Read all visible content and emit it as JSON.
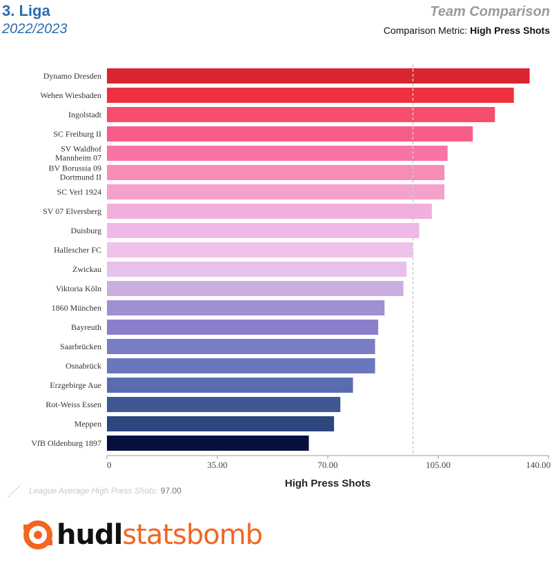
{
  "header": {
    "league": "3. Liga",
    "season": "2022/2023",
    "report_title": "Team Comparison",
    "metric_prefix": "Comparison Metric:",
    "metric_name": "High Press Shots"
  },
  "footer": {
    "average_label": "League Average High Press Shots:",
    "average_value": "97.00",
    "logo_hudl": "hudl",
    "logo_statsbomb": "statsbomb",
    "logo_icon": "statsbomb-logo-icon"
  },
  "colors": {
    "header_blue": "#2b6cb0",
    "brand_orange": "#f26522",
    "average_line": "#cccccc"
  },
  "chart_data": {
    "type": "bar",
    "orientation": "horizontal",
    "xlabel": "High Press Shots",
    "xlim": [
      0,
      140
    ],
    "xticks": [
      "0",
      "35.00",
      "70.00",
      "105.00",
      "140.00"
    ],
    "xtick_values": [
      0,
      35,
      70,
      105,
      140
    ],
    "average": 97,
    "grid": false,
    "categories": [
      "Dynamo Dresden",
      "Wehen Wiesbaden",
      "Ingolstadt",
      "SC Freiburg II",
      "SV Waldhof Mannheim 07",
      "BV Borussia 09 Dortmund II",
      "SC Verl 1924",
      "SV 07 Elversberg",
      "Duisburg",
      "Hallescher FC",
      "Zwickau",
      "Viktoria Köln",
      "1860 München",
      "Bayreuth",
      "Saarbrücken",
      "Osnabrück",
      "Erzgebirge Aue",
      "Rot-Weiss Essen",
      "Meppen",
      "VfB Oldenburg 1897"
    ],
    "category_lines": [
      [
        "Dynamo Dresden"
      ],
      [
        "Wehen Wiesbaden"
      ],
      [
        "Ingolstadt"
      ],
      [
        "SC Freiburg II"
      ],
      [
        "SV Waldhof",
        "Mannheim 07"
      ],
      [
        "BV Borussia 09",
        "Dortmund II"
      ],
      [
        "SC Verl 1924"
      ],
      [
        "SV 07 Elversberg"
      ],
      [
        "Duisburg"
      ],
      [
        "Hallescher FC"
      ],
      [
        "Zwickau"
      ],
      [
        "Viktoria Köln"
      ],
      [
        "1860 München"
      ],
      [
        "Bayreuth"
      ],
      [
        "Saarbrücken"
      ],
      [
        "Osnabrück"
      ],
      [
        "Erzgebirge Aue"
      ],
      [
        "Rot-Weiss Essen"
      ],
      [
        "Meppen"
      ],
      [
        "VfB Oldenburg 1897"
      ]
    ],
    "values": [
      134,
      129,
      123,
      116,
      108,
      107,
      107,
      103,
      99,
      97,
      95,
      94,
      88,
      86,
      85,
      85,
      78,
      74,
      72,
      64
    ],
    "bar_colors": [
      "#d92530",
      "#f0303f",
      "#f64d6c",
      "#f85d8a",
      "#f874a4",
      "#f78cb6",
      "#f4a2cc",
      "#f1afdb",
      "#f0b8e6",
      "#eec1ea",
      "#e7c1ea",
      "#cbaee0",
      "#a08fd2",
      "#8b7fcb",
      "#7a7cc6",
      "#6a77bf",
      "#5a6cb0",
      "#3f5892",
      "#2c477d",
      "#070f3d"
    ]
  }
}
